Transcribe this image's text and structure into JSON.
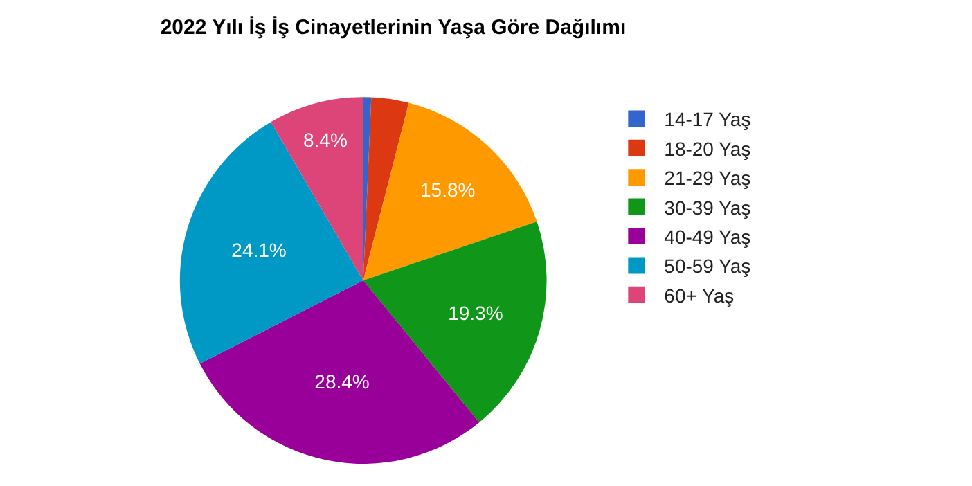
{
  "chart_data": {
    "type": "pie",
    "title": "2022 Yılı İş İş Cinayetlerinin Yaşa Göre Dağılımı",
    "categories": [
      "14-17 Yaş",
      "18-20 Yaş",
      "21-29 Yaş",
      "30-39 Yaş",
      "40-49 Yaş",
      "50-59 Yaş",
      "60+ Yaş"
    ],
    "values": [
      0.7,
      3.3,
      15.8,
      19.3,
      28.4,
      24.1,
      8.4
    ],
    "value_labels": [
      null,
      null,
      "15.8%",
      "19.3%",
      "28.4%",
      "24.1%",
      "8.4%"
    ],
    "colors": [
      "#3366cc",
      "#dc3912",
      "#ff9900",
      "#109618",
      "#990099",
      "#0099c6",
      "#dd4477"
    ],
    "legend": "right"
  }
}
